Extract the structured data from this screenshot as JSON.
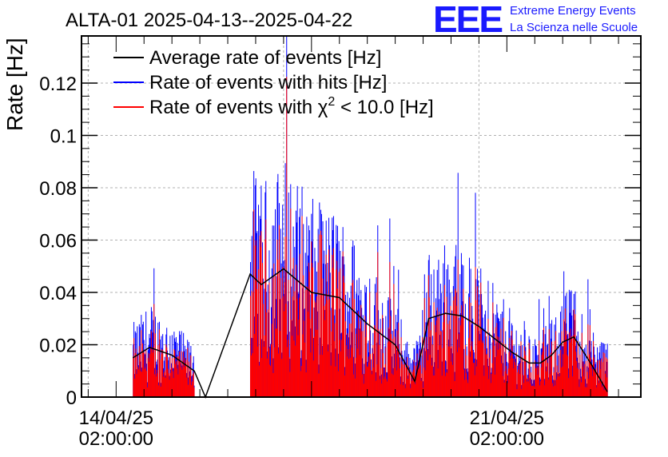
{
  "chart_data": {
    "type": "bar",
    "title": "ALTA-01 2025-04-13--2025-04-22",
    "ylabel": "Rate [Hz]",
    "xlabel": "",
    "ylim": [
      0,
      0.138
    ],
    "grid": true,
    "legend_position": "top-left",
    "x_unit": "days",
    "xlim_days": [
      -0.62,
      9.4
    ],
    "y_ticks": [
      0,
      0.02,
      0.04,
      0.06,
      0.08,
      0.1,
      0.12
    ],
    "y_tick_labels": [
      "0",
      "0.02",
      "0.04",
      "0.06",
      "0.08",
      "0.1",
      "0.12"
    ],
    "x_ticks": [
      {
        "day": 0,
        "line1": "14/04/25",
        "line2": "02:00:00"
      },
      {
        "day": 7,
        "line1": "21/04/25",
        "line2": "02:00:00"
      }
    ],
    "data_segments_days": [
      [
        0.3,
        1.4
      ],
      [
        2.4,
        5.35
      ],
      [
        5.35,
        8.8
      ]
    ],
    "legend": {
      "average": "Average rate of events [Hz]",
      "hits": "Rate of events with hits [Hz]",
      "chi2_prefix": "Rate of events with ",
      "chi2_symbol": "χ",
      "chi2_sup": "2",
      "chi2_suffix": " < 10.0 [Hz]"
    },
    "colors": {
      "average": "#000000",
      "hits": "#0000ff",
      "chi2": "#ff0000"
    },
    "average_series": {
      "x_days": [
        0.3,
        0.6,
        1.0,
        1.4,
        1.6,
        2.4,
        2.6,
        3.0,
        3.5,
        4.0,
        4.5,
        5.0,
        5.35,
        5.6,
        5.9,
        6.2,
        6.5,
        6.8,
        7.1,
        7.4,
        7.6,
        7.8,
        8.0,
        8.2,
        8.5,
        8.8
      ],
      "y": [
        0.015,
        0.019,
        0.016,
        0.01,
        0.0,
        0.047,
        0.043,
        0.049,
        0.04,
        0.038,
        0.028,
        0.02,
        0.006,
        0.03,
        0.032,
        0.031,
        0.027,
        0.022,
        0.017,
        0.013,
        0.013,
        0.016,
        0.021,
        0.023,
        0.013,
        0.002
      ]
    }
  },
  "brand": {
    "logo": "EEE",
    "line1": "Extreme Energy Events",
    "line2": "La Scienza nelle Scuole"
  }
}
